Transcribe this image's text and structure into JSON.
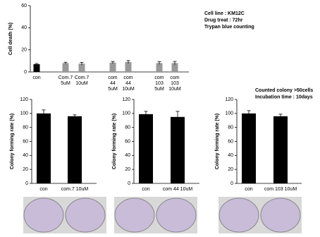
{
  "chart_data": [
    {
      "type": "bar",
      "y_label": "Cell death (%)",
      "categories": [
        "con",
        "Com.7 5uM",
        "Com.7 10uM",
        "com 44 5uM",
        "com 44 10uM",
        "com 103 5uM",
        "com 103 10uM"
      ],
      "values": [
        7,
        8,
        7.5,
        8.5,
        9,
        8,
        8
      ],
      "errors": [
        0.7,
        0.8,
        1.2,
        1,
        1.3,
        1.2,
        1.5
      ],
      "colors": [
        "#000000",
        "#999999",
        "#999999",
        "#999999",
        "#999999",
        "#999999",
        "#999999"
      ],
      "ylim": [
        0,
        60
      ],
      "yticks": [
        0,
        20,
        40,
        60
      ],
      "annotations": [
        "Cell line : KM12C",
        "Drug treat : 72hr",
        "Trypan blue counting"
      ]
    },
    {
      "type": "bar",
      "y_label": "Colony forming rate (%)",
      "categories": [
        "con",
        "com.7 10uM"
      ],
      "values": [
        100,
        96
      ],
      "errors": [
        5,
        2
      ],
      "colors": [
        "#000000",
        "#000000"
      ],
      "ylim": [
        0,
        120
      ],
      "yticks": [
        0,
        20,
        40,
        60,
        80,
        100,
        120
      ]
    },
    {
      "type": "bar",
      "y_label": "Colony forming rate (%)",
      "categories": [
        "con",
        "com 44 10uM"
      ],
      "values": [
        99,
        95
      ],
      "errors": [
        4,
        8
      ],
      "colors": [
        "#000000",
        "#000000"
      ],
      "ylim": [
        0,
        120
      ],
      "yticks": [
        0,
        20,
        40,
        60,
        80,
        100,
        120
      ]
    },
    {
      "type": "bar",
      "y_label": "Colony forming rate (%)",
      "categories": [
        "con",
        "com 103 10uM"
      ],
      "values": [
        100,
        96
      ],
      "errors": [
        4,
        3
      ],
      "colors": [
        "#000000",
        "#000000"
      ],
      "ylim": [
        0,
        120
      ],
      "yticks": [
        0,
        20,
        40,
        60,
        80,
        100,
        120
      ],
      "annotations": [
        "Counted colony >50cells",
        "Incubation time : 10days"
      ]
    }
  ]
}
